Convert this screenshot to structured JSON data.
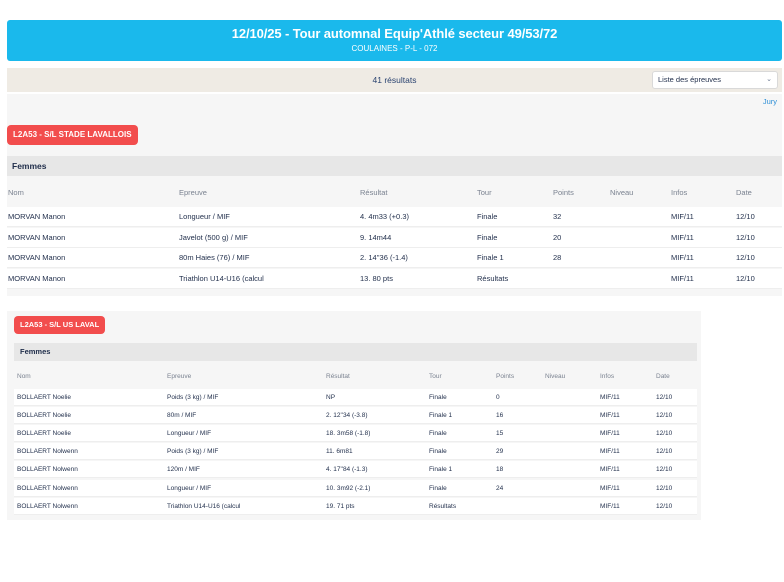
{
  "header": {
    "title": "12/10/25 - Tour automnal Equip'Athlé secteur 49/53/72",
    "subtitle": "COULAINES - P-L - 072"
  },
  "results": {
    "count": "41 résultats",
    "filter_select": "Liste des épreuves"
  },
  "jury_link": "Jury",
  "columns": [
    "Nom",
    "Epreuve",
    "Résultat",
    "Tour",
    "Points",
    "Niveau",
    "Infos",
    "Date"
  ],
  "clubs": [
    {
      "name": "L2A53 - S/L STADE LAVALLOIS",
      "category": "Femmes",
      "rows": [
        {
          "nom": "MORVAN Manon",
          "epreuve": "Longueur / MIF",
          "resultat": "4. 4m33 (+0.3)",
          "tour": "Finale",
          "points": "32",
          "niveau": "",
          "infos": "MIF/11",
          "date": "12/10"
        },
        {
          "nom": "MORVAN Manon",
          "epreuve": "Javelot (500 g) / MIF",
          "resultat": "9. 14m44",
          "tour": "Finale",
          "points": "20",
          "niveau": "",
          "infos": "MIF/11",
          "date": "12/10"
        },
        {
          "nom": "MORVAN Manon",
          "epreuve": "80m Haies (76) / MIF",
          "resultat": "2. 14''36 (-1.4)",
          "tour": "Finale 1",
          "points": "28",
          "niveau": "",
          "infos": "MIF/11",
          "date": "12/10"
        },
        {
          "nom": "MORVAN Manon",
          "epreuve": "Triathlon U14-U16 (calcul",
          "resultat": "13. 80 pts",
          "tour": "Résultats",
          "points": "",
          "niveau": "",
          "infos": "MIF/11",
          "date": "12/10"
        }
      ]
    },
    {
      "name": "L2A53 - S/L US LAVAL",
      "category": "Femmes",
      "rows": [
        {
          "nom": "BOLLAERT Noelie",
          "epreuve": "Poids (3 kg) / MIF",
          "resultat": "NP",
          "tour": "Finale",
          "points": "0",
          "niveau": "",
          "infos": "MIF/11",
          "date": "12/10"
        },
        {
          "nom": "BOLLAERT Noelie",
          "epreuve": "80m / MIF",
          "resultat": "2. 12''34 (-3.8)",
          "tour": "Finale 1",
          "points": "16",
          "niveau": "",
          "infos": "MIF/11",
          "date": "12/10"
        },
        {
          "nom": "BOLLAERT Noelie",
          "epreuve": "Longueur / MIF",
          "resultat": "18. 3m58 (-1.8)",
          "tour": "Finale",
          "points": "15",
          "niveau": "",
          "infos": "MIF/11",
          "date": "12/10"
        },
        {
          "nom": "BOLLAERT Nolwenn",
          "epreuve": "Poids (3 kg) / MIF",
          "resultat": "11. 6m81",
          "tour": "Finale",
          "points": "29",
          "niveau": "",
          "infos": "MIF/11",
          "date": "12/10"
        },
        {
          "nom": "BOLLAERT Nolwenn",
          "epreuve": "120m / MIF",
          "resultat": "4. 17''84 (-1.3)",
          "tour": "Finale 1",
          "points": "18",
          "niveau": "",
          "infos": "MIF/11",
          "date": "12/10"
        },
        {
          "nom": "BOLLAERT Nolwenn",
          "epreuve": "Longueur / MIF",
          "resultat": "10. 3m92 (-2.1)",
          "tour": "Finale",
          "points": "24",
          "niveau": "",
          "infos": "MIF/11",
          "date": "12/10"
        },
        {
          "nom": "BOLLAERT Nolwenn",
          "epreuve": "Triathlon U14-U16 (calcul",
          "resultat": "19. 71 pts",
          "tour": "Résultats",
          "points": "",
          "niveau": "",
          "infos": "MIF/11",
          "date": "12/10"
        }
      ]
    }
  ],
  "colors": {
    "header_bg": "#1ab9ec",
    "club_badge": "#f24d4d",
    "results_bar": "#efebe4",
    "category_bg": "#e7e7e7",
    "link": "#2e8fd6"
  },
  "icons": {
    "select_arrow": "chevron-down-icon"
  }
}
